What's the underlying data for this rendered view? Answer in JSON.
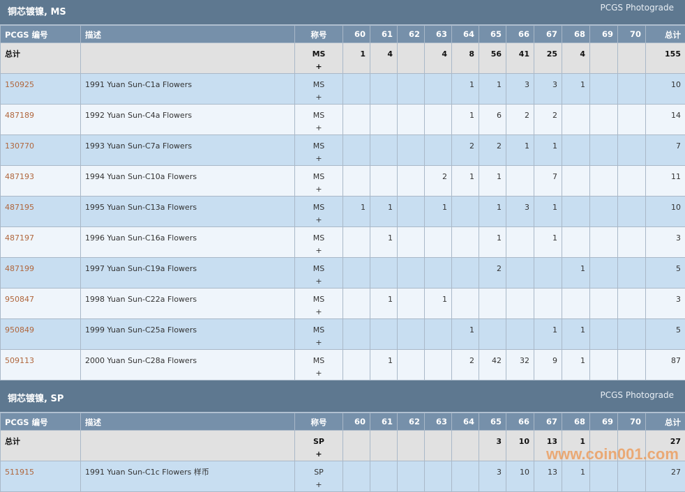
{
  "columns": {
    "code": "PCGS 编号",
    "desc": "描述",
    "desig": "称号",
    "grades": [
      "60",
      "61",
      "62",
      "63",
      "64",
      "65",
      "66",
      "67",
      "68",
      "69",
      "70"
    ],
    "total": "总计"
  },
  "sections": [
    {
      "title": "铜芯镀镍, MS",
      "photograde": "PCGS Photograde",
      "total_row": {
        "label": "总计",
        "desig": "MS",
        "plus": "+",
        "counts": [
          "1",
          "4",
          "",
          "4",
          "8",
          "56",
          "41",
          "25",
          "4",
          "",
          ""
        ],
        "total": "155"
      },
      "rows": [
        {
          "code": "150925",
          "desc": "1991 Yuan Sun-C1a Flowers",
          "desig": "MS",
          "plus": "+",
          "counts": [
            "",
            "",
            "",
            "",
            "1",
            "1",
            "3",
            "3",
            "1",
            "",
            ""
          ],
          "total": "10"
        },
        {
          "code": "487189",
          "desc": "1992 Yuan Sun-C4a Flowers",
          "desig": "MS",
          "plus": "+",
          "counts": [
            "",
            "",
            "",
            "",
            "1",
            "6",
            "2",
            "2",
            "",
            "",
            ""
          ],
          "total": "14"
        },
        {
          "code": "130770",
          "desc": "1993 Yuan Sun-C7a Flowers",
          "desig": "MS",
          "plus": "+",
          "counts": [
            "",
            "",
            "",
            "",
            "2",
            "2",
            "1",
            "1",
            "",
            "",
            ""
          ],
          "total": "7"
        },
        {
          "code": "487193",
          "desc": "1994 Yuan Sun-C10a Flowers",
          "desig": "MS",
          "plus": "+",
          "counts": [
            "",
            "",
            "",
            "2",
            "1",
            "1",
            "",
            "7",
            "",
            "",
            ""
          ],
          "total": "11"
        },
        {
          "code": "487195",
          "desc": "1995 Yuan Sun-C13a Flowers",
          "desig": "MS",
          "plus": "+",
          "counts": [
            "1",
            "1",
            "",
            "1",
            "",
            "1",
            "3",
            "1",
            "",
            "",
            ""
          ],
          "total": "10"
        },
        {
          "code": "487197",
          "desc": "1996 Yuan Sun-C16a Flowers",
          "desig": "MS",
          "plus": "+",
          "counts": [
            "",
            "1",
            "",
            "",
            "",
            "1",
            "",
            "1",
            "",
            "",
            ""
          ],
          "total": "3"
        },
        {
          "code": "487199",
          "desc": "1997 Yuan Sun-C19a Flowers",
          "desig": "MS",
          "plus": "+",
          "counts": [
            "",
            "",
            "",
            "",
            "",
            "2",
            "",
            "",
            "1",
            "",
            ""
          ],
          "total": "5"
        },
        {
          "code": "950847",
          "desc": "1998 Yuan Sun-C22a Flowers",
          "desig": "MS",
          "plus": "+",
          "counts": [
            "",
            "1",
            "",
            "1",
            "",
            "",
            "",
            "",
            "",
            "",
            ""
          ],
          "total": "3"
        },
        {
          "code": "950849",
          "desc": "1999 Yuan Sun-C25a Flowers",
          "desig": "MS",
          "plus": "+",
          "counts": [
            "",
            "",
            "",
            "",
            "1",
            "",
            "",
            "1",
            "1",
            "",
            ""
          ],
          "total": "5"
        },
        {
          "code": "509113",
          "desc": "2000 Yuan Sun-C28a Flowers",
          "desig": "MS",
          "plus": "+",
          "counts": [
            "",
            "1",
            "",
            "",
            "2",
            "42",
            "32",
            "9",
            "1",
            "",
            ""
          ],
          "total": "87"
        }
      ]
    },
    {
      "title": "铜芯镀镍, SP",
      "photograde": "PCGS Photograde",
      "total_row": {
        "label": "总计",
        "desig": "SP",
        "plus": "+",
        "counts": [
          "",
          "",
          "",
          "",
          "",
          "3",
          "10",
          "13",
          "1",
          "",
          ""
        ],
        "total": "27"
      },
      "rows": [
        {
          "code": "511915",
          "desc": "1991 Yuan Sun-C1c Flowers 样币",
          "desig": "SP",
          "plus": "+",
          "counts": [
            "",
            "",
            "",
            "",
            "",
            "3",
            "10",
            "13",
            "1",
            "",
            ""
          ],
          "total": "27"
        }
      ]
    }
  ],
  "watermark": "www.coin001.com"
}
